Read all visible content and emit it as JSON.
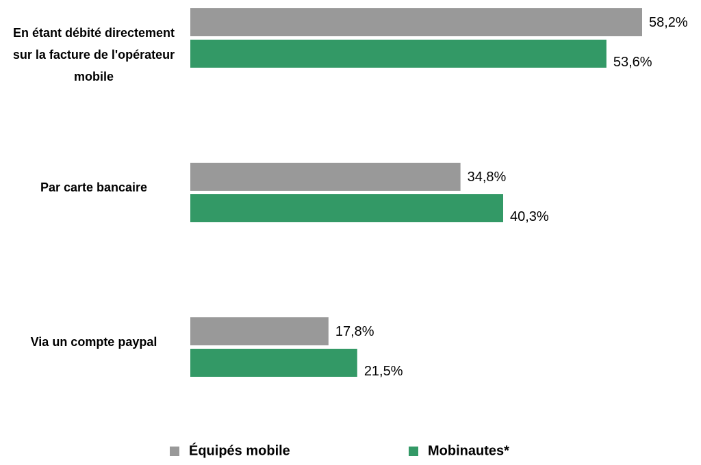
{
  "chart_data": {
    "type": "bar",
    "orientation": "horizontal",
    "categories": [
      "En étant débité directement sur la facture de l'opérateur mobile",
      "Par carte bancaire",
      "Via un compte paypal"
    ],
    "series": [
      {
        "name": "Équipés mobile",
        "color": "#999999",
        "values": [
          58.2,
          34.8,
          17.8
        ],
        "value_labels": [
          "58,2%",
          "34,8%",
          "17,8%"
        ]
      },
      {
        "name": "Mobinautes*",
        "color": "#339966",
        "values": [
          53.6,
          40.3,
          21.5
        ],
        "value_labels": [
          "53,6%",
          "40,3%",
          "21,5%"
        ]
      }
    ],
    "legend": "bottom"
  }
}
